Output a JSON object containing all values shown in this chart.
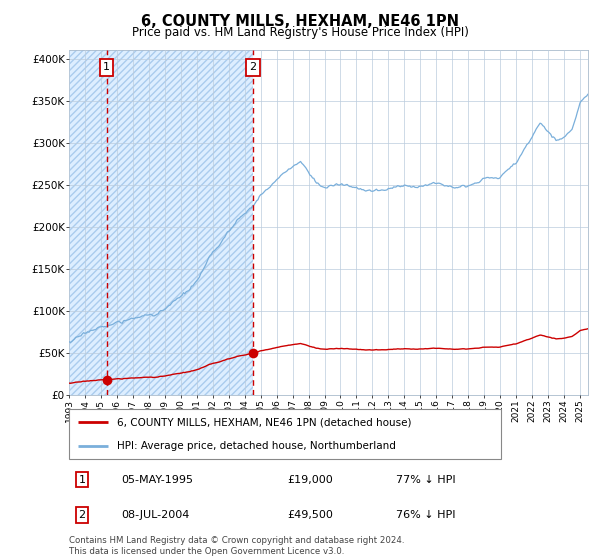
{
  "title": "6, COUNTY MILLS, HEXHAM, NE46 1PN",
  "subtitle": "Price paid vs. HM Land Registry's House Price Index (HPI)",
  "hpi_legend": "HPI: Average price, detached house, Northumberland",
  "price_legend": "6, COUNTY MILLS, HEXHAM, NE46 1PN (detached house)",
  "transaction1": {
    "date": "05-MAY-1995",
    "price": 19000,
    "pct": "77% ↓ HPI"
  },
  "transaction2": {
    "date": "08-JUL-2004",
    "price": 49500,
    "pct": "76% ↓ HPI"
  },
  "t1_x": 1995.35,
  "t2_x": 2004.52,
  "ylim": [
    0,
    410000
  ],
  "xlim_start": 1993.0,
  "xlim_end": 2025.5,
  "hpi_color": "#7aafdb",
  "price_color": "#cc0000",
  "footer": "Contains HM Land Registry data © Crown copyright and database right 2024.\nThis data is licensed under the Open Government Licence v3.0.",
  "yticks": [
    0,
    50000,
    100000,
    150000,
    200000,
    250000,
    300000,
    350000,
    400000
  ],
  "ytick_labels": [
    "£0",
    "£50K",
    "£100K",
    "£150K",
    "£200K",
    "£250K",
    "£300K",
    "£350K",
    "£400K"
  ],
  "xtick_years": [
    1993,
    1994,
    1995,
    1996,
    1997,
    1998,
    1999,
    2000,
    2001,
    2002,
    2003,
    2004,
    2005,
    2006,
    2007,
    2008,
    2009,
    2010,
    2011,
    2012,
    2013,
    2014,
    2015,
    2016,
    2017,
    2018,
    2019,
    2020,
    2021,
    2022,
    2023,
    2024,
    2025
  ]
}
